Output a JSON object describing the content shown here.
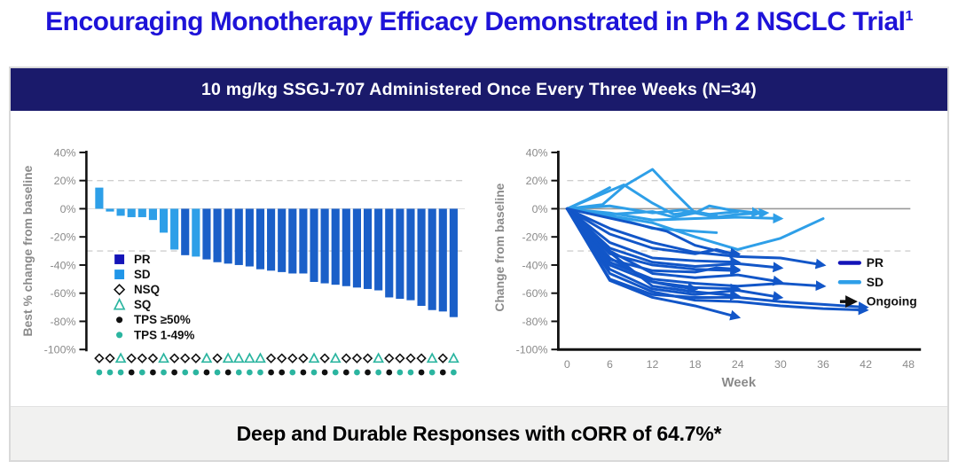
{
  "page": {
    "title": "Encouraging Monotherapy Efficacy Demonstrated in Ph 2 NSCLC Trial",
    "title_superscript": "1",
    "banner": "10 mg/kg SSGJ-707 Administered Once Every Three Weeks (N=34)",
    "footer": "Deep and Durable Responses with cORR of 64.7%*"
  },
  "colors": {
    "title_blue": "#1E13D8",
    "banner_navy": "#1A1A6B",
    "footer_bg": "#F1F1F0",
    "bar_pr": "#1A5FC8",
    "bar_sd": "#2D9FE8",
    "line_pr": "#1256C8",
    "line_sd": "#2E9FE8",
    "legend_pr_navy": "#1414B8",
    "legend_sd_blue": "#2196E8",
    "teal": "#2BB5A0",
    "black": "#111111",
    "axis_gray": "#8A8A8A",
    "grid_gray": "#CFCFCF",
    "zero_line_gray": "#999999"
  },
  "chart_data": [
    {
      "type": "bar",
      "name": "waterfall",
      "title": "",
      "xlabel": "",
      "ylabel": "Best % change from baseline",
      "ylim": [
        -100,
        40
      ],
      "yticks": [
        40,
        20,
        0,
        -20,
        -40,
        -60,
        -80,
        -100
      ],
      "gridlines_dashed": [
        20,
        -30
      ],
      "n": 34,
      "values": [
        15,
        -2,
        -5,
        -6,
        -6,
        -8,
        -17,
        -29,
        -33,
        -34,
        -36,
        -38,
        -39,
        -40,
        -41,
        -43,
        -44,
        -45,
        -46,
        -46,
        -52,
        -53,
        -54,
        -55,
        -56,
        -57,
        -58,
        -63,
        -64,
        -65,
        -69,
        -72,
        -73,
        -77
      ],
      "response": [
        "SD",
        "SD",
        "SD",
        "SD",
        "SD",
        "SD",
        "SD",
        "SD",
        "PR",
        "SD",
        "PR",
        "PR",
        "PR",
        "PR",
        "PR",
        "PR",
        "PR",
        "PR",
        "PR",
        "PR",
        "PR",
        "PR",
        "PR",
        "PR",
        "PR",
        "PR",
        "PR",
        "PR",
        "PR",
        "PR",
        "PR",
        "PR",
        "PR",
        "PR"
      ],
      "histology": [
        "NSQ",
        "NSQ",
        "SQ",
        "NSQ",
        "NSQ",
        "NSQ",
        "SQ",
        "NSQ",
        "NSQ",
        "NSQ",
        "SQ",
        "NSQ",
        "SQ",
        "SQ",
        "SQ",
        "SQ",
        "NSQ",
        "NSQ",
        "NSQ",
        "NSQ",
        "SQ",
        "NSQ",
        "SQ",
        "NSQ",
        "NSQ",
        "NSQ",
        "SQ",
        "NSQ",
        "NSQ",
        "NSQ",
        "NSQ",
        "SQ",
        "NSQ",
        "SQ"
      ],
      "tps": [
        "1-49",
        "1-49",
        "1-49",
        "≥50",
        "1-49",
        "≥50",
        "1-49",
        "≥50",
        "1-49",
        "1-49",
        "≥50",
        "1-49",
        "≥50",
        "1-49",
        "1-49",
        "1-49",
        "≥50",
        "≥50",
        "1-49",
        "≥50",
        "1-49",
        "≥50",
        "1-49",
        "≥50",
        "1-49",
        "≥50",
        "1-49",
        "≥50",
        "1-49",
        "1-49",
        "≥50",
        "1-49",
        "≥50",
        "1-49"
      ],
      "legend": [
        {
          "label": "PR",
          "swatch": "square",
          "color": "#1414B8"
        },
        {
          "label": "SD",
          "swatch": "square",
          "color": "#2196E8"
        },
        {
          "label": "NSQ",
          "swatch": "diamond-outline",
          "color": "#111111"
        },
        {
          "label": "SQ",
          "swatch": "triangle-outline",
          "color": "#2BB5A0"
        },
        {
          "label": "TPS ≥50%",
          "swatch": "dot",
          "color": "#111111"
        },
        {
          "label": "TPS 1-49%",
          "swatch": "dot",
          "color": "#2BB5A0"
        }
      ]
    },
    {
      "type": "line",
      "name": "spider",
      "title": "",
      "xlabel": "Week",
      "ylabel": "Change from baseline",
      "xlim": [
        0,
        48
      ],
      "ylim": [
        -100,
        40
      ],
      "xticks": [
        0,
        6,
        12,
        18,
        24,
        30,
        36,
        42,
        48
      ],
      "yticks": [
        40,
        20,
        0,
        -20,
        -40,
        -60,
        -80,
        -100
      ],
      "gridlines_dashed": [
        20,
        -30
      ],
      "zero_line": 0,
      "legend": [
        {
          "label": "PR",
          "swatch": "line",
          "color": "#1414B8"
        },
        {
          "label": "SD",
          "swatch": "line",
          "color": "#2E9FE8"
        },
        {
          "label": "Ongoing",
          "swatch": "arrow",
          "color": "#111111"
        }
      ],
      "series": [
        {
          "type": "SD",
          "ongoing": false,
          "points": [
            [
              0,
              0
            ],
            [
              3,
              7
            ],
            [
              6,
              15
            ]
          ]
        },
        {
          "type": "SD",
          "ongoing": true,
          "points": [
            [
              0,
              0
            ],
            [
              5,
              3
            ],
            [
              8,
              16
            ],
            [
              12,
              28
            ],
            [
              15,
              12
            ],
            [
              18,
              -3
            ],
            [
              20,
              2
            ],
            [
              23,
              -1
            ],
            [
              27,
              -3
            ]
          ]
        },
        {
          "type": "SD",
          "ongoing": false,
          "points": [
            [
              0,
              0
            ],
            [
              8,
              17
            ],
            [
              12,
              4
            ],
            [
              15,
              -4
            ],
            [
              18,
              -2
            ],
            [
              21,
              -5
            ]
          ]
        },
        {
          "type": "SD",
          "ongoing": true,
          "points": [
            [
              0,
              0
            ],
            [
              6,
              -4
            ],
            [
              12,
              -2
            ],
            [
              15,
              -6
            ],
            [
              18,
              -3
            ],
            [
              21,
              -6
            ],
            [
              24,
              -4
            ],
            [
              28,
              -3
            ]
          ]
        },
        {
          "type": "SD",
          "ongoing": false,
          "points": [
            [
              0,
              0
            ],
            [
              6,
              -5
            ],
            [
              12,
              -14
            ],
            [
              18,
              -16
            ],
            [
              21,
              -17
            ]
          ]
        },
        {
          "type": "SD",
          "ongoing": false,
          "points": [
            [
              0,
              0
            ],
            [
              6,
              2
            ],
            [
              12,
              -3
            ],
            [
              16,
              -1
            ],
            [
              20,
              -4
            ],
            [
              24,
              -2
            ]
          ]
        },
        {
          "type": "SD",
          "ongoing": true,
          "points": [
            [
              0,
              0
            ],
            [
              6,
              -3
            ],
            [
              12,
              -8
            ],
            [
              18,
              -7
            ],
            [
              24,
              -6
            ],
            [
              30,
              -7
            ]
          ]
        },
        {
          "type": "SD",
          "ongoing": false,
          "points": [
            [
              0,
              0
            ],
            [
              12,
              -10
            ],
            [
              18,
              -20
            ],
            [
              24,
              -29
            ],
            [
              30,
              -21
            ],
            [
              36,
              -7
            ]
          ]
        },
        {
          "type": "PR",
          "ongoing": true,
          "points": [
            [
              0,
              0
            ],
            [
              6,
              -18
            ],
            [
              12,
              -28
            ],
            [
              18,
              -32
            ],
            [
              21,
              -29
            ],
            [
              24,
              -33
            ]
          ]
        },
        {
          "type": "PR",
          "ongoing": true,
          "points": [
            [
              0,
              0
            ],
            [
              6,
              -14
            ],
            [
              12,
              -24
            ],
            [
              18,
              -31
            ],
            [
              24,
              -34
            ],
            [
              30,
              -35
            ],
            [
              36,
              -40
            ]
          ]
        },
        {
          "type": "PR",
          "ongoing": true,
          "points": [
            [
              0,
              0
            ],
            [
              6,
              -24
            ],
            [
              12,
              -35
            ],
            [
              18,
              -37
            ],
            [
              24,
              -38
            ]
          ]
        },
        {
          "type": "PR",
          "ongoing": true,
          "points": [
            [
              0,
              0
            ],
            [
              6,
              -28
            ],
            [
              12,
              -38
            ],
            [
              18,
              -41
            ],
            [
              24,
              -39
            ],
            [
              30,
              -42
            ]
          ]
        },
        {
          "type": "PR",
          "ongoing": true,
          "points": [
            [
              0,
              0
            ],
            [
              6,
              -32
            ],
            [
              12,
              -40
            ],
            [
              18,
              -43
            ],
            [
              24,
              -44
            ]
          ]
        },
        {
          "type": "PR",
          "ongoing": true,
          "points": [
            [
              0,
              0
            ],
            [
              6,
              -36
            ],
            [
              12,
              -44
            ],
            [
              18,
              -45
            ],
            [
              21,
              -42
            ],
            [
              24,
              -43
            ]
          ]
        },
        {
          "type": "PR",
          "ongoing": true,
          "points": [
            [
              0,
              0
            ],
            [
              6,
              -30
            ],
            [
              12,
              -46
            ],
            [
              18,
              -49
            ],
            [
              24,
              -47
            ],
            [
              30,
              -52
            ]
          ]
        },
        {
          "type": "PR",
          "ongoing": true,
          "points": [
            [
              0,
              0
            ],
            [
              6,
              -38
            ],
            [
              12,
              -50
            ],
            [
              18,
              -53
            ],
            [
              24,
              -55
            ],
            [
              30,
              -53
            ],
            [
              36,
              -55
            ]
          ]
        },
        {
          "type": "PR",
          "ongoing": true,
          "points": [
            [
              0,
              0
            ],
            [
              6,
              -40
            ],
            [
              12,
              -52
            ],
            [
              18,
              -56
            ],
            [
              24,
              -57
            ]
          ]
        },
        {
          "type": "PR",
          "ongoing": true,
          "points": [
            [
              0,
              0
            ],
            [
              6,
              -31
            ],
            [
              12,
              -55
            ],
            [
              18,
              -59
            ],
            [
              24,
              -62
            ]
          ]
        },
        {
          "type": "PR",
          "ongoing": true,
          "points": [
            [
              0,
              0
            ],
            [
              6,
              -43
            ],
            [
              12,
              -57
            ],
            [
              18,
              -61
            ],
            [
              24,
              -58
            ],
            [
              30,
              -63
            ]
          ]
        },
        {
          "type": "PR",
          "ongoing": true,
          "points": [
            [
              0,
              0
            ],
            [
              6,
              -50
            ],
            [
              12,
              -61
            ],
            [
              18,
              -63
            ],
            [
              24,
              -63
            ],
            [
              30,
              -66
            ],
            [
              36,
              -68
            ],
            [
              42,
              -70
            ]
          ]
        },
        {
          "type": "PR",
          "ongoing": true,
          "points": [
            [
              0,
              0
            ],
            [
              6,
              -46
            ],
            [
              12,
              -59
            ],
            [
              18,
              -65
            ],
            [
              24,
              -66
            ],
            [
              30,
              -69
            ],
            [
              36,
              -71
            ],
            [
              42,
              -72
            ]
          ]
        },
        {
          "type": "PR",
          "ongoing": true,
          "points": [
            [
              0,
              0
            ],
            [
              6,
              -51
            ],
            [
              12,
              -63
            ],
            [
              18,
              -69
            ],
            [
              24,
              -77
            ]
          ]
        },
        {
          "type": "PR",
          "ongoing": true,
          "points": [
            [
              0,
              0
            ],
            [
              6,
              -35
            ],
            [
              12,
              -52
            ],
            [
              15,
              -55
            ],
            [
              18,
              -57
            ]
          ]
        },
        {
          "type": "PR",
          "ongoing": true,
          "points": [
            [
              0,
              0
            ],
            [
              9,
              -10
            ],
            [
              14,
              -16
            ],
            [
              18,
              -26
            ],
            [
              22,
              -31
            ],
            [
              24,
              -32
            ]
          ]
        }
      ]
    }
  ]
}
